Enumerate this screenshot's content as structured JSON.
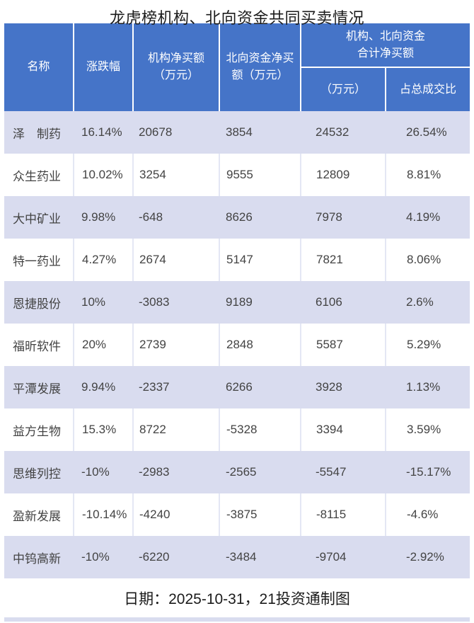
{
  "title": "龙虎榜机构、北向资金共同买卖情况",
  "footer": "日期：2025-10-31，21投资通制图",
  "colors": {
    "header_bg": "#4574C8",
    "header_text": "#FFFFFF",
    "row_shaded_bg": "#D9DCEF",
    "row_white_bg": "#FFFFFF",
    "body_text": "#434343",
    "row_divider": "#E4E7F4"
  },
  "header": {
    "name": "名称",
    "change": "涨跌幅",
    "inst_line1": "机构净买额",
    "inst_line2": "（万元）",
    "north_line1": "北向资金净买",
    "north_line2": "额（万元）",
    "combined_group_line1": "机构、北向资金",
    "combined_group_line2": "合计净买额",
    "combined_amount": "（万元）",
    "combined_pct": "占总成交比"
  },
  "chart_data": {
    "type": "table",
    "title": "龙虎榜机构、北向资金共同买卖情况",
    "columns": [
      "名称",
      "涨跌幅",
      "机构净买额（万元）",
      "北向资金净买额（万元）",
      "机构、北向资金合计净买额（万元）",
      "机构、北向资金合计净买额占总成交比"
    ],
    "rows": [
      [
        "泽　制药",
        "16.14%",
        "20678",
        "3854",
        "24532",
        "26.54%"
      ],
      [
        "众生药业",
        "10.02%",
        "3254",
        "9555",
        "12809",
        "8.81%"
      ],
      [
        "大中矿业",
        "9.98%",
        "-648",
        "8626",
        "7978",
        "4.19%"
      ],
      [
        "特一药业",
        "4.27%",
        "2674",
        "5147",
        "7821",
        "8.06%"
      ],
      [
        "恩捷股份",
        "10%",
        "-3083",
        "9189",
        "6106",
        "2.6%"
      ],
      [
        "福昕软件",
        "20%",
        "2739",
        "2848",
        "5587",
        "5.29%"
      ],
      [
        "平潭发展",
        "9.94%",
        "-2337",
        "6266",
        "3928",
        "1.13%"
      ],
      [
        "益方生物",
        "15.3%",
        "8722",
        "-5328",
        "3394",
        "3.59%"
      ],
      [
        "思维列控",
        "-10%",
        "-2983",
        "-2565",
        "-5547",
        "-15.17%"
      ],
      [
        "盈新发展",
        "-10.14%",
        "-4240",
        "-3875",
        "-8115",
        "-4.6%"
      ],
      [
        "中钨高新",
        "-10%",
        "-6220",
        "-3484",
        "-9704",
        "-2.92%"
      ]
    ],
    "footnote": "日期：2025-10-31，21投资通制图"
  }
}
